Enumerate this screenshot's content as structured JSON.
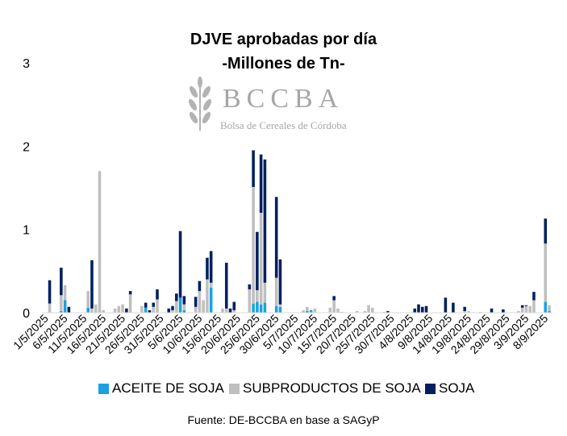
{
  "chart_data": {
    "type": "bar",
    "stacked": true,
    "title": "DJVE aprobadas por día",
    "subtitle": "-Millones de Tn-",
    "xlabel": "",
    "ylabel": "",
    "ylim": [
      0,
      3
    ],
    "yticks": [
      "0",
      "1",
      "2",
      "3"
    ],
    "grid": false,
    "legend_position": "bottom",
    "x_tick_labels": [
      "1/5/2025",
      "6/5/2025",
      "11/5/2025",
      "16/5/2025",
      "21/5/2025",
      "26/5/2025",
      "31/5/2025",
      "5/6/2025",
      "10/6/2025",
      "15/6/2025",
      "20/6/2025",
      "25/6/2025",
      "30/6/2025",
      "5/7/2025",
      "10/7/2025",
      "15/7/2025",
      "20/7/2025",
      "25/7/2025",
      "30/7/2025",
      "4/8/2025",
      "9/8/2025",
      "14/8/2025",
      "19/8/2025",
      "24/8/2025",
      "29/8/2025",
      "3/9/2025",
      "8/9/2025"
    ],
    "categories": [
      "2/5/2025",
      "5/5/2025",
      "6/5/2025",
      "7/5/2025",
      "8/5/2025",
      "12/5/2025",
      "13/5/2025",
      "14/5/2025",
      "15/5/2025",
      "16/5/2025",
      "19/5/2025",
      "20/5/2025",
      "21/5/2025",
      "22/5/2025",
      "23/5/2025",
      "26/5/2025",
      "27/5/2025",
      "28/5/2025",
      "29/5/2025",
      "30/5/2025",
      "2/6/2025",
      "3/6/2025",
      "4/6/2025",
      "5/6/2025",
      "6/6/2025",
      "9/6/2025",
      "10/6/2025",
      "11/6/2025",
      "12/6/2025",
      "13/6/2025",
      "16/6/2025",
      "17/6/2025",
      "18/6/2025",
      "19/6/2025",
      "20/6/2025",
      "23/6/2025",
      "24/6/2025",
      "25/6/2025",
      "26/6/2025",
      "27/6/2025",
      "30/6/2025",
      "1/7/2025",
      "2/7/2025",
      "3/7/2025",
      "4/7/2025",
      "7/7/2025",
      "8/7/2025",
      "9/7/2025",
      "10/7/2025",
      "11/7/2025",
      "14/7/2025",
      "15/7/2025",
      "16/7/2025",
      "17/7/2025",
      "18/7/2025",
      "21/7/2025",
      "22/7/2025",
      "23/7/2025",
      "24/7/2025",
      "25/7/2025",
      "28/7/2025",
      "29/7/2025",
      "30/7/2025",
      "31/7/2025",
      "1/8/2025",
      "4/8/2025",
      "5/8/2025",
      "6/8/2025",
      "7/8/2025",
      "8/8/2025",
      "11/8/2025",
      "12/8/2025",
      "13/8/2025",
      "14/8/2025",
      "15/8/2025",
      "18/8/2025",
      "19/8/2025",
      "20/8/2025",
      "21/8/2025",
      "22/8/2025",
      "25/8/2025",
      "26/8/2025",
      "27/8/2025",
      "28/8/2025",
      "29/8/2025",
      "1/9/2025",
      "2/9/2025",
      "3/9/2025",
      "4/9/2025",
      "5/9/2025",
      "8/9/2025",
      "9/9/2025"
    ],
    "series": [
      {
        "name": "ACEITE DE SOJA",
        "color": "#1ba1e2",
        "values": [
          0,
          0.02,
          0.15,
          0,
          0,
          0.06,
          0,
          0,
          0,
          0,
          0,
          0,
          0,
          0,
          0,
          0,
          0.06,
          0,
          0,
          0,
          0,
          0,
          0,
          0.18,
          0.03,
          0,
          0,
          0,
          0,
          0.3,
          0,
          0,
          0,
          0,
          0,
          0,
          0.11,
          0.13,
          0.1,
          0.12,
          0.08,
          0.07,
          0,
          0,
          0,
          0,
          0.02,
          0.03,
          0,
          0,
          0,
          0,
          0,
          0,
          0,
          0,
          0,
          0,
          0,
          0,
          0,
          0,
          0,
          0,
          0,
          0,
          0,
          0,
          0,
          0,
          0,
          0,
          0,
          0,
          0,
          0,
          0,
          0,
          0,
          0,
          0,
          0,
          0,
          0,
          0,
          0,
          0,
          0,
          0,
          0,
          0.13,
          0.02
        ]
      },
      {
        "name": "SUBPRODUCTOS DE SOJA",
        "color": "#bfbfbf",
        "values": [
          0.11,
          0.19,
          0.18,
          0,
          0,
          0.2,
          0.05,
          0.1,
          1.7,
          0.03,
          0.05,
          0.08,
          0.1,
          0,
          0.22,
          0.08,
          0,
          0,
          0.07,
          0.16,
          0,
          0.03,
          0.14,
          0,
          0.07,
          0.07,
          0.26,
          0.15,
          0.4,
          0.06,
          0.05,
          0.05,
          0,
          0.03,
          0,
          0.28,
          1.4,
          0.14,
          1.1,
          0.24,
          0.34,
          0.03,
          0,
          0,
          0,
          0.03,
          0.05,
          0,
          0.05,
          0,
          0.06,
          0.15,
          0.05,
          0.01,
          0,
          0.02,
          0,
          0.02,
          0.09,
          0.06,
          0.01,
          0,
          0,
          0,
          0,
          0,
          0,
          0,
          0,
          0,
          0,
          0,
          0,
          0,
          0,
          0.02,
          0.02,
          0,
          0,
          0.01,
          0,
          0,
          0,
          0,
          0,
          0.02,
          0.06,
          0.08,
          0.08,
          0.15,
          0.7,
          0.07
        ]
      },
      {
        "name": "SOJA",
        "color": "#002060",
        "values": [
          0.28,
          0.33,
          0,
          0.07,
          0,
          0,
          0.58,
          0,
          0,
          0,
          0,
          0,
          0,
          0.05,
          0.04,
          0,
          0.06,
          0.03,
          0.05,
          0.12,
          0.05,
          0.05,
          0.09,
          0.8,
          0.1,
          0.12,
          0.12,
          0,
          0.26,
          0.38,
          0,
          0.55,
          0.05,
          0.1,
          0,
          0.06,
          0.44,
          0.7,
          0.7,
          1.48,
          0.97,
          0.54,
          0,
          0,
          0,
          0,
          0,
          0,
          0,
          0,
          0,
          0.05,
          0,
          0,
          0,
          0,
          0,
          0,
          0,
          0,
          0,
          0.02,
          0,
          0,
          0,
          0,
          0.05,
          0.1,
          0.07,
          0.08,
          0,
          0,
          0.18,
          0,
          0.12,
          0.05,
          0,
          0,
          0,
          0,
          0.05,
          0,
          0,
          0.04,
          0,
          0,
          0.03,
          0.01,
          0,
          0.1,
          0.3,
          0
        ]
      }
    ]
  },
  "logo": {
    "name": "BCCBA",
    "subtitle": "Bolsa de Cereales de Córdoba"
  },
  "source": "Fuente: DE-BCCBA en base a SAGyP"
}
